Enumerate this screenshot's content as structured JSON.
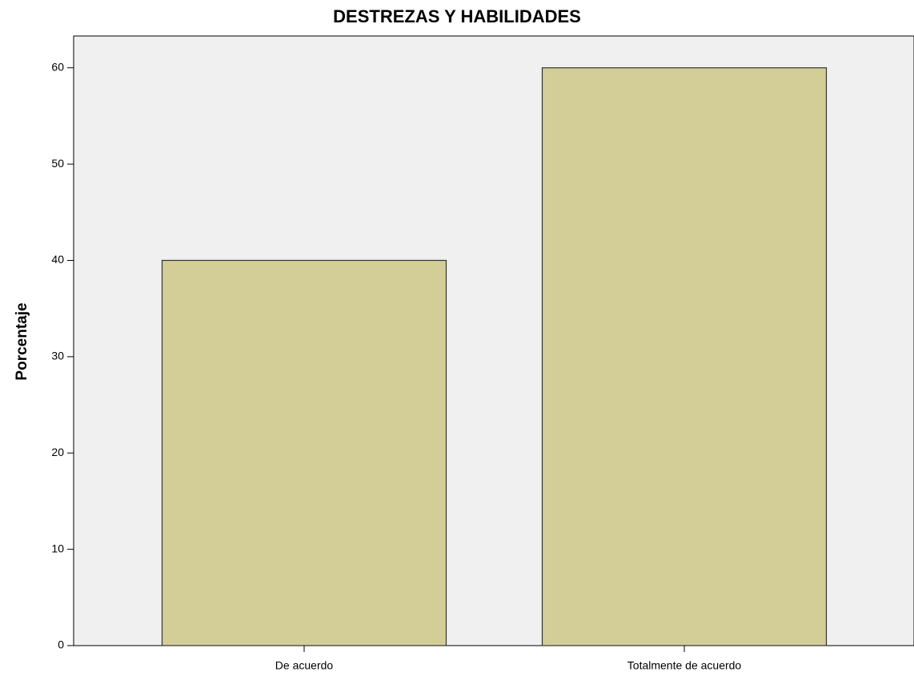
{
  "chart_data": {
    "type": "bar",
    "title": "DESTREZAS Y HABILIDADES",
    "y_label": "Porcentaje",
    "categories": [
      "De acuerdo",
      "Totalmente de acuerdo"
    ],
    "values": [
      40,
      60
    ],
    "color": "#d3ce97",
    "ylim": [
      0,
      63.3
    ],
    "yticks": [
      0,
      10,
      20,
      30,
      40,
      50,
      60
    ],
    "grid": false
  }
}
